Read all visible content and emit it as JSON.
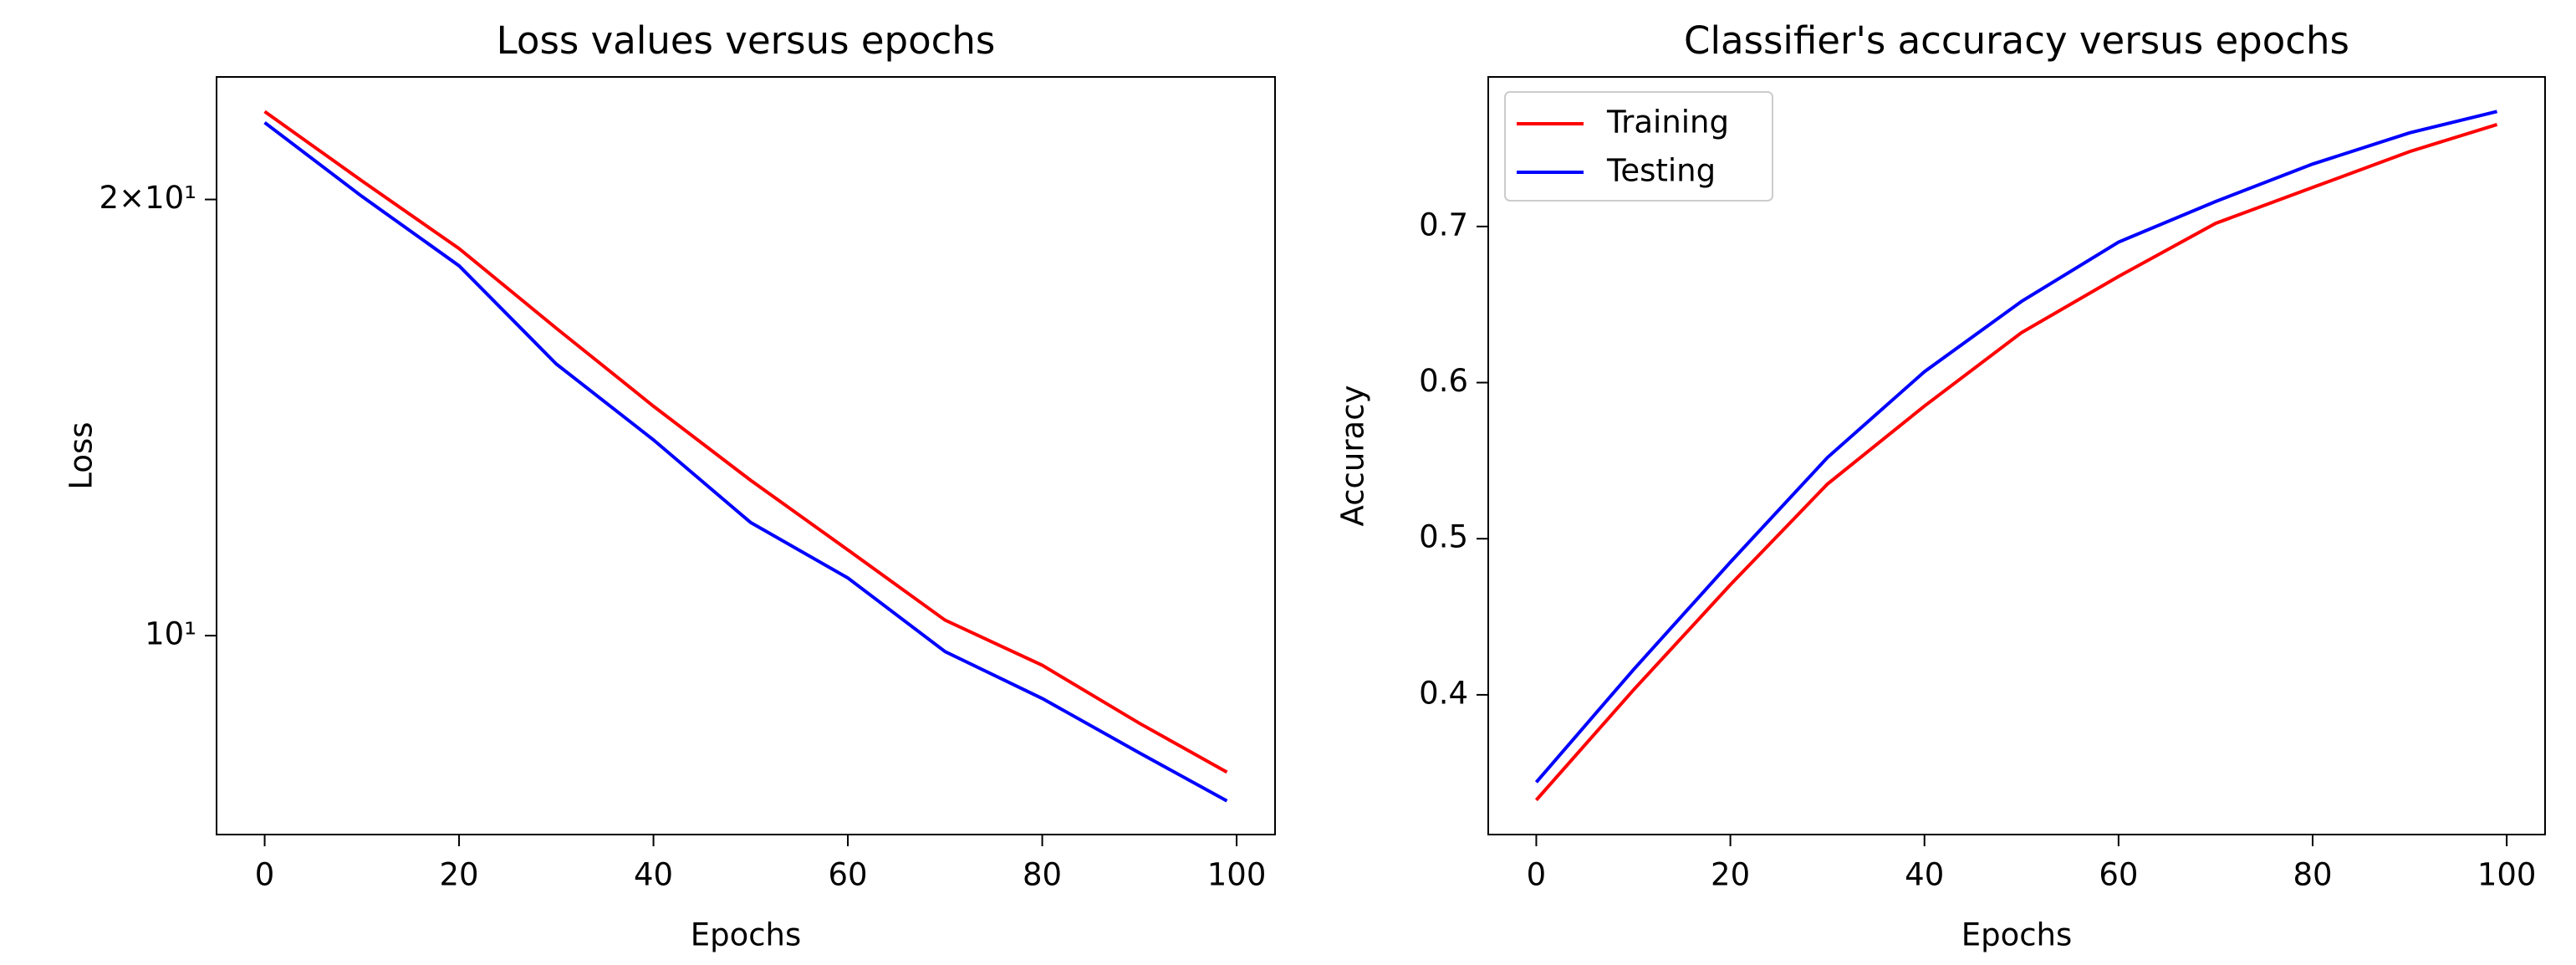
{
  "chart_data": [
    {
      "type": "line",
      "title": "Loss values versus epochs",
      "x_label": "Epochs",
      "y_label": "Loss",
      "x": [
        0,
        10,
        20,
        30,
        40,
        50,
        60,
        70,
        80,
        90,
        99
      ],
      "series": [
        {
          "name": "Training",
          "color": "#ff0000",
          "values": [
            23.0,
            20.6,
            18.5,
            16.3,
            14.4,
            12.8,
            11.46,
            10.25,
            9.54,
            8.7,
            8.05
          ]
        },
        {
          "name": "Testing",
          "color": "#0000ff",
          "values": [
            22.6,
            20.1,
            18.0,
            15.4,
            13.65,
            11.97,
            10.96,
            9.75,
            9.05,
            8.3,
            7.69
          ]
        }
      ],
      "xlim": [
        -4.95,
        103.95
      ],
      "xticks": [
        0,
        20,
        40,
        60,
        80,
        100
      ],
      "ylim": [
        7.29,
        24.3
      ],
      "y_scale": "log",
      "yticks": [
        {
          "value": 10,
          "label": "10¹"
        },
        {
          "value": 20,
          "label": "2×10¹"
        }
      ]
    },
    {
      "type": "line",
      "title": "Classifier's accuracy versus epochs",
      "x_label": "Epochs",
      "y_label": "Accuracy",
      "x": [
        0,
        10,
        20,
        30,
        40,
        50,
        60,
        70,
        80,
        90,
        99
      ],
      "series": [
        {
          "name": "Training",
          "color": "#ff0000",
          "values": [
            0.3326,
            0.403,
            0.4705,
            0.535,
            0.585,
            0.632,
            0.668,
            0.702,
            0.725,
            0.748,
            0.7653
          ]
        },
        {
          "name": "Testing",
          "color": "#0000ff",
          "values": [
            0.344,
            0.416,
            0.485,
            0.552,
            0.607,
            0.652,
            0.69,
            0.716,
            0.74,
            0.76,
            0.7737
          ]
        }
      ],
      "xlim": [
        -4.95,
        103.95
      ],
      "xticks": [
        0,
        20,
        40,
        60,
        80,
        100
      ],
      "ylim": [
        0.3105,
        0.7958
      ],
      "yticks": [
        0.4,
        0.5,
        0.6,
        0.7
      ],
      "legend": "upper left"
    }
  ]
}
